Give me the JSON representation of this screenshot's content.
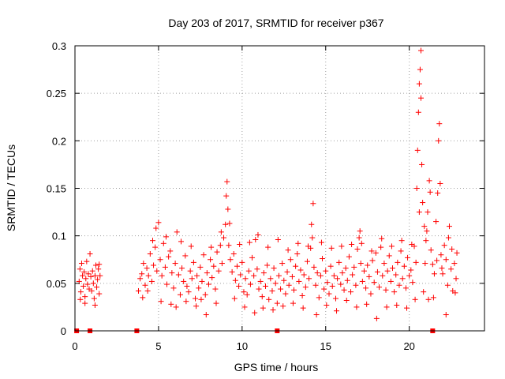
{
  "chart_data": {
    "type": "scatter",
    "title": "Day 203 of 2017, SRMTID for receiver p367",
    "xlabel": "GPS time / hours",
    "ylabel": "SRMTID / TECUs",
    "xlim": [
      0,
      24.5
    ],
    "ylim": [
      0,
      0.3
    ],
    "grid": true,
    "marker": "plus",
    "color": "#ff0000",
    "x_ticks": [
      0,
      5,
      10,
      15,
      20
    ],
    "x_tick_labels": [
      "0",
      "5",
      "10",
      "15",
      "20"
    ],
    "y_ticks": [
      0,
      0.05,
      0.1,
      0.15,
      0.2,
      0.25,
      0.3
    ],
    "y_tick_labels": [
      "0",
      "0.05",
      "0.1",
      "0.15",
      "0.2",
      "0.25",
      "0.3"
    ],
    "zero_markers_x": [
      0.1,
      0.9,
      3.7,
      12.1,
      21.4
    ],
    "series": [
      {
        "name": "SRMTID",
        "points": [
          [
            0.25,
            0.052
          ],
          [
            0.3,
            0.065
          ],
          [
            0.35,
            0.041
          ],
          [
            0.4,
            0.071
          ],
          [
            0.45,
            0.058
          ],
          [
            0.5,
            0.047
          ],
          [
            0.55,
            0.062
          ],
          [
            0.6,
            0.036
          ],
          [
            0.65,
            0.055
          ],
          [
            0.7,
            0.073
          ],
          [
            0.75,
            0.049
          ],
          [
            0.8,
            0.06
          ],
          [
            0.85,
            0.044
          ],
          [
            0.9,
            0.081
          ],
          [
            0.95,
            0.057
          ],
          [
            1.0,
            0.042
          ],
          [
            1.05,
            0.063
          ],
          [
            1.1,
            0.05
          ],
          [
            1.15,
            0.034
          ],
          [
            1.2,
            0.058
          ],
          [
            1.25,
            0.069
          ],
          [
            1.3,
            0.046
          ],
          [
            1.35,
            0.054
          ],
          [
            1.4,
            0.065
          ],
          [
            1.45,
            0.039
          ],
          [
            1.5,
            0.058
          ],
          [
            0.32,
            0.033
          ],
          [
            0.6,
            0.029
          ],
          [
            1.2,
            0.027
          ],
          [
            1.45,
            0.07
          ],
          [
            3.8,
            0.042
          ],
          [
            3.9,
            0.055
          ],
          [
            4.0,
            0.06
          ],
          [
            4.1,
            0.071
          ],
          [
            4.2,
            0.048
          ],
          [
            4.3,
            0.066
          ],
          [
            4.4,
            0.058
          ],
          [
            4.5,
            0.081
          ],
          [
            4.6,
            0.052
          ],
          [
            4.7,
            0.069
          ],
          [
            4.8,
            0.088
          ],
          [
            4.9,
            0.063
          ],
          [
            5.0,
            0.114
          ],
          [
            5.1,
            0.075
          ],
          [
            5.2,
            0.058
          ],
          [
            5.3,
            0.092
          ],
          [
            5.4,
            0.067
          ],
          [
            5.5,
            0.049
          ],
          [
            5.6,
            0.078
          ],
          [
            5.7,
            0.084
          ],
          [
            5.8,
            0.061
          ],
          [
            5.9,
            0.045
          ],
          [
            6.0,
            0.071
          ],
          [
            6.1,
            0.104
          ],
          [
            6.2,
            0.059
          ],
          [
            6.3,
            0.038
          ],
          [
            6.4,
            0.066
          ],
          [
            6.5,
            0.052
          ],
          [
            6.6,
            0.079
          ],
          [
            6.7,
            0.047
          ],
          [
            6.8,
            0.041
          ],
          [
            6.9,
            0.063
          ],
          [
            7.0,
            0.055
          ],
          [
            7.1,
            0.072
          ],
          [
            7.2,
            0.034
          ],
          [
            7.3,
            0.058
          ],
          [
            7.4,
            0.045
          ],
          [
            7.5,
            0.067
          ],
          [
            7.6,
            0.052
          ],
          [
            7.7,
            0.08
          ],
          [
            7.8,
            0.038
          ],
          [
            7.9,
            0.061
          ],
          [
            8.0,
            0.049
          ],
          [
            8.1,
            0.075
          ],
          [
            8.2,
            0.056
          ],
          [
            8.3,
            0.068
          ],
          [
            8.4,
            0.044
          ],
          [
            8.5,
            0.083
          ],
          [
            8.6,
            0.063
          ],
          [
            8.7,
            0.09
          ],
          [
            8.8,
            0.071
          ],
          [
            8.9,
            0.098
          ],
          [
            9.0,
            0.112
          ],
          [
            9.05,
            0.142
          ],
          [
            9.1,
            0.157
          ],
          [
            9.15,
            0.128
          ],
          [
            9.2,
            0.09
          ],
          [
            9.3,
            0.075
          ],
          [
            9.4,
            0.062
          ],
          [
            9.5,
            0.081
          ],
          [
            9.6,
            0.053
          ],
          [
            9.7,
            0.068
          ],
          [
            9.8,
            0.047
          ],
          [
            9.9,
            0.059
          ],
          [
            10.0,
            0.072
          ],
          [
            10.1,
            0.041
          ],
          [
            10.2,
            0.055
          ],
          [
            10.3,
            0.038
          ],
          [
            10.4,
            0.063
          ],
          [
            10.5,
            0.049
          ],
          [
            10.6,
            0.077
          ],
          [
            10.7,
            0.058
          ],
          [
            10.8,
            0.096
          ],
          [
            10.9,
            0.065
          ],
          [
            11.0,
            0.044
          ],
          [
            11.1,
            0.052
          ],
          [
            11.2,
            0.036
          ],
          [
            11.3,
            0.061
          ],
          [
            11.4,
            0.047
          ],
          [
            11.5,
            0.069
          ],
          [
            11.6,
            0.033
          ],
          [
            11.7,
            0.055
          ],
          [
            11.8,
            0.042
          ],
          [
            11.9,
            0.066
          ],
          [
            12.0,
            0.05
          ],
          [
            12.1,
            0.029
          ],
          [
            12.2,
            0.058
          ],
          [
            12.3,
            0.044
          ],
          [
            12.4,
            0.071
          ],
          [
            12.5,
            0.053
          ],
          [
            12.6,
            0.039
          ],
          [
            12.7,
            0.062
          ],
          [
            12.8,
            0.048
          ],
          [
            12.9,
            0.075
          ],
          [
            13.0,
            0.057
          ],
          [
            13.1,
            0.043
          ],
          [
            13.2,
            0.068
          ],
          [
            13.3,
            0.081
          ],
          [
            13.4,
            0.052
          ],
          [
            13.5,
            0.064
          ],
          [
            13.6,
            0.037
          ],
          [
            13.7,
            0.059
          ],
          [
            13.8,
            0.046
          ],
          [
            13.9,
            0.073
          ],
          [
            14.0,
            0.055
          ],
          [
            14.1,
            0.087
          ],
          [
            14.2,
            0.098
          ],
          [
            14.25,
            0.134
          ],
          [
            14.3,
            0.067
          ],
          [
            14.4,
            0.048
          ],
          [
            14.5,
            0.061
          ],
          [
            14.6,
            0.035
          ],
          [
            14.7,
            0.058
          ],
          [
            14.8,
            0.076
          ],
          [
            14.9,
            0.044
          ],
          [
            15.0,
            0.063
          ],
          [
            15.1,
            0.051
          ],
          [
            15.2,
            0.039
          ],
          [
            15.3,
            0.068
          ],
          [
            15.4,
            0.047
          ],
          [
            15.5,
            0.058
          ],
          [
            15.6,
            0.034
          ],
          [
            15.7,
            0.055
          ],
          [
            15.8,
            0.072
          ],
          [
            15.9,
            0.049
          ],
          [
            16.0,
            0.061
          ],
          [
            16.1,
            0.043
          ],
          [
            16.2,
            0.066
          ],
          [
            16.3,
            0.053
          ],
          [
            16.4,
            0.078
          ],
          [
            16.5,
            0.041
          ],
          [
            16.6,
            0.059
          ],
          [
            16.7,
            0.067
          ],
          [
            16.8,
            0.048
          ],
          [
            16.9,
            0.086
          ],
          [
            17.0,
            0.098
          ],
          [
            17.05,
            0.105
          ],
          [
            17.1,
            0.071
          ],
          [
            17.2,
            0.052
          ],
          [
            17.3,
            0.063
          ],
          [
            17.4,
            0.045
          ],
          [
            17.5,
            0.069
          ],
          [
            17.6,
            0.057
          ],
          [
            17.7,
            0.039
          ],
          [
            17.8,
            0.074
          ],
          [
            17.9,
            0.051
          ],
          [
            18.0,
            0.082
          ],
          [
            18.1,
            0.062
          ],
          [
            18.2,
            0.046
          ],
          [
            18.3,
            0.088
          ],
          [
            18.4,
            0.058
          ],
          [
            18.5,
            0.071
          ],
          [
            18.6,
            0.043
          ],
          [
            18.7,
            0.063
          ],
          [
            18.8,
            0.079
          ],
          [
            18.9,
            0.052
          ],
          [
            19.0,
            0.066
          ],
          [
            19.1,
            0.041
          ],
          [
            19.2,
            0.059
          ],
          [
            19.3,
            0.072
          ],
          [
            19.4,
            0.048
          ],
          [
            19.5,
            0.084
          ],
          [
            19.6,
            0.055
          ],
          [
            19.7,
            0.068
          ],
          [
            19.8,
            0.045
          ],
          [
            19.9,
            0.077
          ],
          [
            20.0,
            0.058
          ],
          [
            20.1,
            0.064
          ],
          [
            20.2,
            0.051
          ],
          [
            20.3,
            0.089
          ],
          [
            20.4,
            0.072
          ],
          [
            20.45,
            0.15
          ],
          [
            20.5,
            0.19
          ],
          [
            20.55,
            0.23
          ],
          [
            20.6,
            0.26
          ],
          [
            20.65,
            0.275
          ],
          [
            20.7,
            0.295
          ],
          [
            20.75,
            0.175
          ],
          [
            20.8,
            0.135
          ],
          [
            20.9,
            0.11
          ],
          [
            21.0,
            0.095
          ],
          [
            21.1,
            0.125
          ],
          [
            21.2,
            0.158
          ],
          [
            21.3,
            0.085
          ],
          [
            21.4,
            0.07
          ],
          [
            21.5,
            0.06
          ],
          [
            21.6,
            0.115
          ],
          [
            21.7,
            0.145
          ],
          [
            21.75,
            0.2
          ],
          [
            21.8,
            0.218
          ],
          [
            21.85,
            0.155
          ],
          [
            21.9,
            0.08
          ],
          [
            22.0,
            0.06
          ],
          [
            22.1,
            0.09
          ],
          [
            22.2,
            0.075
          ],
          [
            22.3,
            0.048
          ],
          [
            22.4,
            0.11
          ],
          [
            22.5,
            0.065
          ],
          [
            22.6,
            0.042
          ],
          [
            22.7,
            0.071
          ],
          [
            22.8,
            0.055
          ],
          [
            22.2,
            0.017
          ],
          [
            21.15,
            0.033
          ],
          [
            20.85,
            0.041
          ],
          [
            4.05,
            0.035
          ],
          [
            4.35,
            0.042
          ],
          [
            4.65,
            0.095
          ],
          [
            4.85,
            0.108
          ],
          [
            5.15,
            0.031
          ],
          [
            5.45,
            0.099
          ],
          [
            5.75,
            0.028
          ],
          [
            6.05,
            0.025
          ],
          [
            6.35,
            0.094
          ],
          [
            6.65,
            0.031
          ],
          [
            6.95,
            0.089
          ],
          [
            7.25,
            0.026
          ],
          [
            7.55,
            0.033
          ],
          [
            7.85,
            0.017
          ],
          [
            8.15,
            0.088
          ],
          [
            8.45,
            0.029
          ],
          [
            8.75,
            0.104
          ],
          [
            9.25,
            0.113
          ],
          [
            9.55,
            0.034
          ],
          [
            9.85,
            0.091
          ],
          [
            10.15,
            0.025
          ],
          [
            10.45,
            0.093
          ],
          [
            10.75,
            0.019
          ],
          [
            10.95,
            0.101
          ],
          [
            11.25,
            0.024
          ],
          [
            11.55,
            0.088
          ],
          [
            11.85,
            0.022
          ],
          [
            12.15,
            0.096
          ],
          [
            12.45,
            0.026
          ],
          [
            12.75,
            0.085
          ],
          [
            13.05,
            0.029
          ],
          [
            13.35,
            0.092
          ],
          [
            13.65,
            0.024
          ],
          [
            13.95,
            0.089
          ],
          [
            14.15,
            0.112
          ],
          [
            14.45,
            0.017
          ],
          [
            14.75,
            0.093
          ],
          [
            15.05,
            0.027
          ],
          [
            15.35,
            0.087
          ],
          [
            15.65,
            0.021
          ],
          [
            15.95,
            0.089
          ],
          [
            16.25,
            0.032
          ],
          [
            16.55,
            0.091
          ],
          [
            16.85,
            0.025
          ],
          [
            17.15,
            0.092
          ],
          [
            17.45,
            0.028
          ],
          [
            17.75,
            0.084
          ],
          [
            18.05,
            0.013
          ],
          [
            18.35,
            0.097
          ],
          [
            18.65,
            0.025
          ],
          [
            18.95,
            0.089
          ],
          [
            19.25,
            0.027
          ],
          [
            19.55,
            0.095
          ],
          [
            19.85,
            0.024
          ],
          [
            20.15,
            0.091
          ],
          [
            20.35,
            0.033
          ],
          [
            20.6,
            0.125
          ],
          [
            20.7,
            0.245
          ],
          [
            20.95,
            0.071
          ],
          [
            21.05,
            0.105
          ],
          [
            21.25,
            0.146
          ],
          [
            21.45,
            0.035
          ],
          [
            21.65,
            0.074
          ],
          [
            21.95,
            0.066
          ],
          [
            22.35,
            0.098
          ],
          [
            22.55,
            0.086
          ],
          [
            22.75,
            0.04
          ],
          [
            22.85,
            0.082
          ]
        ]
      }
    ]
  }
}
